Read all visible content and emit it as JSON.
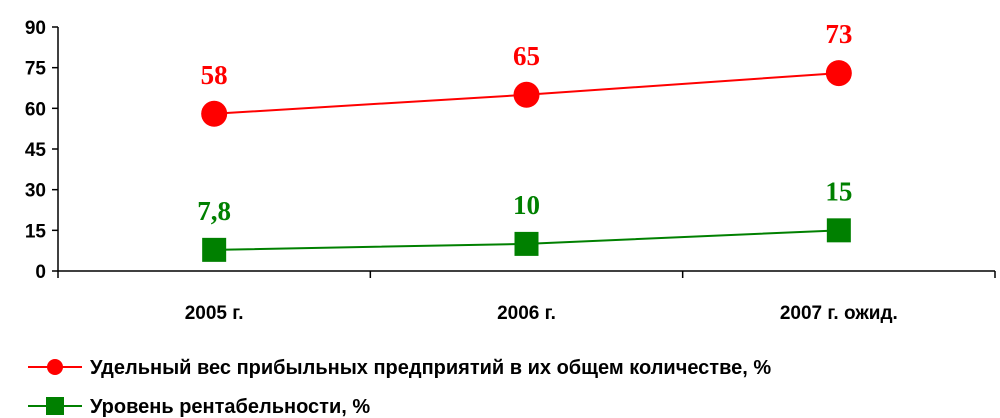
{
  "chart_data": {
    "type": "line",
    "categories": [
      "2005 г.",
      "2006 г.",
      "2007 г. ожид."
    ],
    "ylim": [
      0,
      90
    ],
    "yticks": [
      0,
      15,
      30,
      45,
      60,
      75,
      90
    ],
    "ytick_labels": [
      "0",
      "15",
      "30",
      "45",
      "60",
      "75",
      "90"
    ],
    "grid": false,
    "legend_position": "bottom-left",
    "series": [
      {
        "name": "Удельный вес прибыльных предприятий в их общем количестве, %",
        "values": [
          58,
          65,
          73
        ],
        "labels": [
          "58",
          "65",
          "73"
        ],
        "color": "#ff0000",
        "marker": "circle"
      },
      {
        "name": "Уровень рентабельности, %",
        "values": [
          7.8,
          10,
          15
        ],
        "labels": [
          "7,8",
          "10",
          "15"
        ],
        "color": "#008000",
        "marker": "square"
      }
    ]
  }
}
